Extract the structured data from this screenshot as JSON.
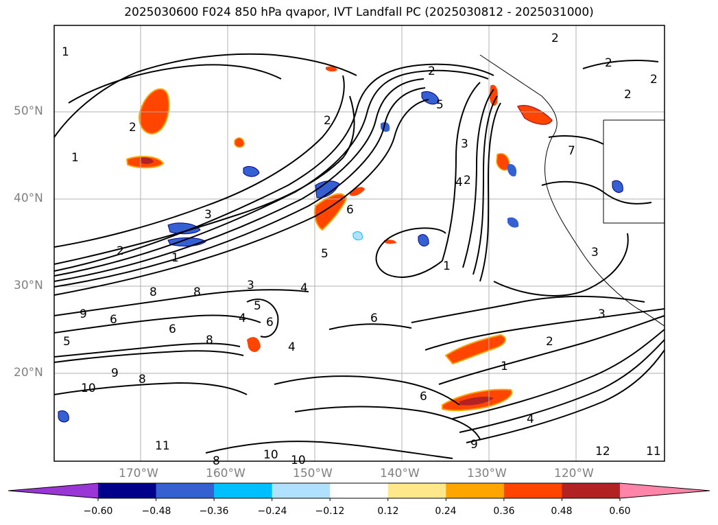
{
  "title": "2025030600 F024 850 hPa qvapor, IVT Landfall PC (2025030812 - 2025031000)",
  "lat_labels": [
    "50°N",
    "40°N",
    "30°N",
    "20°N"
  ],
  "lon_labels": [
    "170°W",
    "160°W",
    "150°W",
    "140°W",
    "130°W",
    "120°W"
  ],
  "contour_labels": [
    "1",
    "2",
    "2",
    "2",
    "2",
    "3",
    "2",
    "2",
    "1",
    "3",
    "2",
    "1",
    "5",
    "6",
    "5",
    "4",
    "8",
    "8",
    "9",
    "6",
    "5",
    "6",
    "8",
    "4",
    "3",
    "2",
    "1",
    "5",
    "6",
    "6",
    "4",
    "9",
    "8",
    "10",
    "11",
    "12",
    "11",
    "4",
    "6",
    "1",
    "2",
    "3",
    "4",
    "7",
    "10",
    "10",
    "8",
    "9",
    "2",
    "3"
  ],
  "colorbar": {
    "ticks": [
      "−0.60",
      "−0.48",
      "−0.36",
      "−0.24",
      "−0.12",
      "0.12",
      "0.24",
      "0.36",
      "0.48",
      "0.60"
    ],
    "colors": [
      "#9a35d6",
      "#00008b",
      "#3560d2",
      "#00bfff",
      "#b0e2ff",
      "#ffffff",
      "#ffe88c",
      "#ffa500",
      "#ff4500",
      "#b22222",
      "#ff85a8"
    ]
  }
}
